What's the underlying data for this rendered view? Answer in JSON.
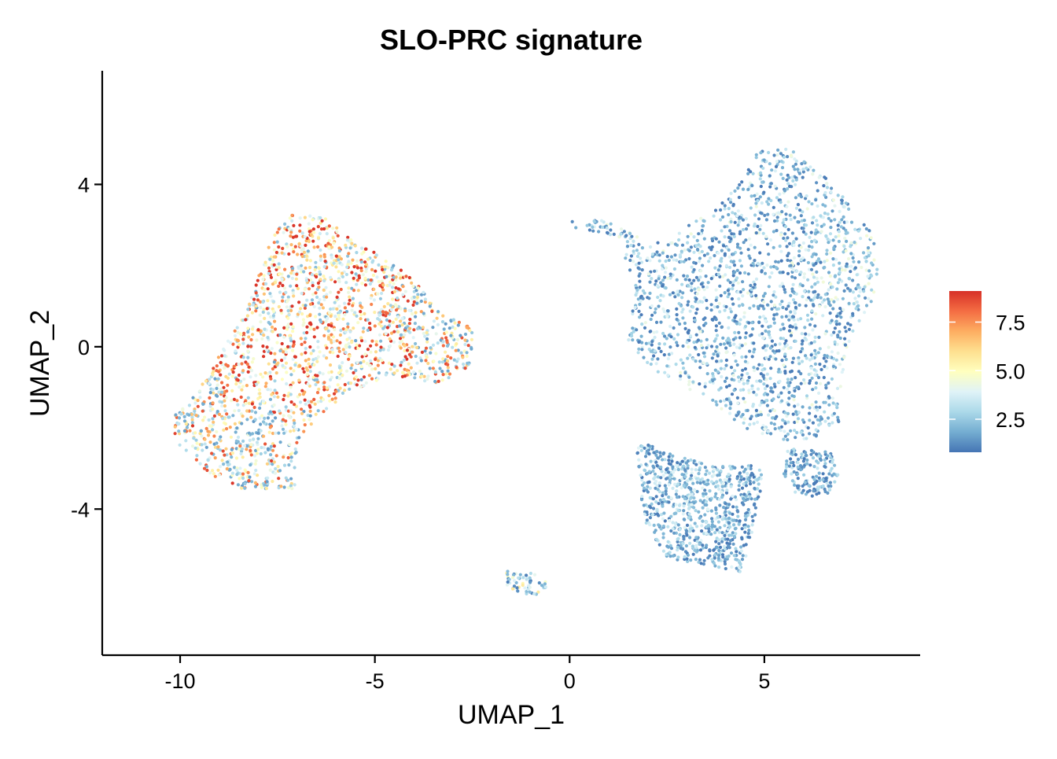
{
  "chart_data": {
    "type": "scatter",
    "title": "SLO-PRC signature",
    "xlabel": "UMAP_1",
    "ylabel": "UMAP_2",
    "xlim": [
      -12,
      9
    ],
    "ylim": [
      -7.6,
      6.8
    ],
    "xticks": [
      {
        "value": -10,
        "label": "-10"
      },
      {
        "value": -5,
        "label": "-5"
      },
      {
        "value": 0,
        "label": "0"
      },
      {
        "value": 5,
        "label": "5"
      }
    ],
    "yticks": [
      {
        "value": -4,
        "label": "-4"
      },
      {
        "value": 0,
        "label": "0"
      },
      {
        "value": 4,
        "label": "4"
      }
    ],
    "grid": false,
    "legend_position": "right",
    "colorbar": {
      "min": 0.8,
      "max": 9.1,
      "ticks": [
        {
          "value": 2.5,
          "label": "2.5"
        },
        {
          "value": 5.0,
          "label": "5.0"
        },
        {
          "value": 7.5,
          "label": "7.5"
        }
      ],
      "palette": [
        "#4575b4",
        "#74add1",
        "#abd9e9",
        "#e0f3f8",
        "#ffffbf",
        "#fee090",
        "#fdae61",
        "#f46d43",
        "#d73027"
      ]
    },
    "point_radius": 2.1,
    "point_seed": 20240511,
    "clusters": [
      {
        "label": "left cluster",
        "n_points": 1900,
        "value_range": [
          1.5,
          9.0
        ],
        "outline": [
          [
            -10.2,
            -1.7
          ],
          [
            -9.5,
            -1.0
          ],
          [
            -8.3,
            0.9
          ],
          [
            -7.6,
            2.8
          ],
          [
            -7.1,
            3.3
          ],
          [
            -6.3,
            3.2
          ],
          [
            -5.7,
            2.7
          ],
          [
            -4.9,
            2.3
          ],
          [
            -4.0,
            1.7
          ],
          [
            -3.3,
            0.8
          ],
          [
            -2.5,
            0.5
          ],
          [
            -2.5,
            -0.5
          ],
          [
            -3.4,
            -0.9
          ],
          [
            -4.5,
            -0.7
          ],
          [
            -5.4,
            -1.0
          ],
          [
            -6.2,
            -1.5
          ],
          [
            -7.0,
            -2.3
          ],
          [
            -7.0,
            -3.5
          ],
          [
            -7.5,
            -3.5
          ],
          [
            -8.4,
            -3.5
          ],
          [
            -9.4,
            -3.1
          ],
          [
            -10.1,
            -2.4
          ]
        ],
        "hotspot": {
          "x": [
            -9.0,
            -4.0
          ],
          "y": [
            -1.5,
            3.3
          ]
        }
      },
      {
        "label": "right upper region",
        "n_points": 1800,
        "value_range": [
          0.9,
          4.5
        ],
        "outline": [
          [
            1.3,
            2.5
          ],
          [
            2.5,
            2.6
          ],
          [
            3.5,
            3.3
          ],
          [
            4.3,
            4.0
          ],
          [
            4.8,
            4.8
          ],
          [
            5.6,
            4.9
          ],
          [
            6.5,
            4.3
          ],
          [
            7.2,
            3.5
          ],
          [
            7.7,
            2.9
          ],
          [
            8.0,
            2.2
          ],
          [
            7.8,
            1.2
          ],
          [
            7.2,
            0.2
          ],
          [
            7.0,
            -0.7
          ],
          [
            7.0,
            -1.8
          ],
          [
            6.0,
            -2.4
          ],
          [
            4.8,
            -2.2
          ],
          [
            3.8,
            -1.5
          ],
          [
            3.0,
            -1.0
          ],
          [
            2.2,
            -0.6
          ],
          [
            1.5,
            0.1
          ],
          [
            1.7,
            1.4
          ]
        ],
        "hotspot": {
          "x": [
            6.5,
            8.0
          ],
          "y": [
            1.0,
            2.8
          ]
        }
      },
      {
        "label": "right lower region",
        "n_points": 800,
        "value_range": [
          0.9,
          4.0
        ],
        "outline": [
          [
            1.7,
            -2.3
          ],
          [
            2.8,
            -2.7
          ],
          [
            3.5,
            -2.9
          ],
          [
            4.6,
            -2.9
          ],
          [
            5.0,
            -3.1
          ],
          [
            4.8,
            -4.0
          ],
          [
            4.6,
            -5.0
          ],
          [
            4.4,
            -5.6
          ],
          [
            3.6,
            -5.4
          ],
          [
            2.5,
            -5.2
          ],
          [
            2.0,
            -4.5
          ],
          [
            1.8,
            -3.6
          ]
        ],
        "hotspot": {
          "x": [
            2.5,
            4.0
          ],
          "y": [
            -4.5,
            -3.0
          ]
        }
      },
      {
        "label": "right small arm",
        "n_points": 160,
        "value_range": [
          0.9,
          3.5
        ],
        "outline": [
          [
            5.6,
            -2.5
          ],
          [
            6.7,
            -2.6
          ],
          [
            6.9,
            -3.2
          ],
          [
            6.6,
            -3.8
          ],
          [
            5.8,
            -3.6
          ],
          [
            5.4,
            -3.0
          ]
        ]
      },
      {
        "label": "top bridge",
        "n_points": 45,
        "value_range": [
          1.0,
          4.5
        ],
        "outline": [
          [
            0.0,
            3.15
          ],
          [
            0.9,
            3.1
          ],
          [
            1.8,
            2.7
          ],
          [
            1.6,
            2.55
          ],
          [
            0.6,
            2.85
          ],
          [
            0.0,
            2.95
          ]
        ]
      },
      {
        "label": "bottom islet",
        "n_points": 60,
        "value_range": [
          1.0,
          6.0
        ],
        "outline": [
          [
            -1.7,
            -5.5
          ],
          [
            -0.8,
            -5.6
          ],
          [
            -0.4,
            -5.85
          ],
          [
            -0.9,
            -6.15
          ],
          [
            -1.6,
            -5.95
          ]
        ]
      }
    ]
  }
}
